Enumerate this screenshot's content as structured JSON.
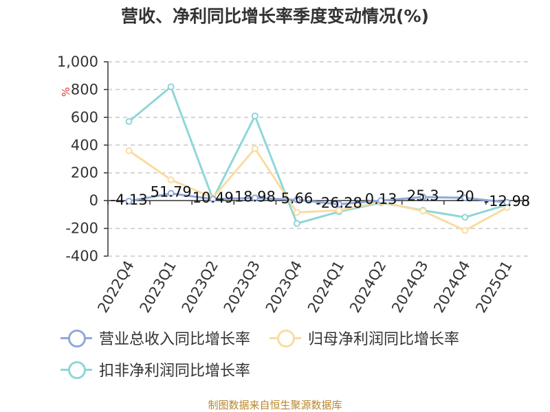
{
  "title": "营收、净利同比增长率季度变动情况(%)",
  "source": "制图数据来自恒生聚源数据库",
  "chart_data": {
    "type": "line",
    "ylabel": "%",
    "ylim": [
      -400,
      1000
    ],
    "yticks": [
      1000,
      800,
      600,
      400,
      200,
      0,
      -200,
      -400
    ],
    "ytick_labels": [
      "1,000",
      "800",
      "600",
      "400",
      "200",
      "0",
      "-200",
      "-400"
    ],
    "grid": true,
    "legend_position": "bottom",
    "categories": [
      "2022Q4",
      "2023Q1",
      "2023Q2",
      "2023Q3",
      "2023Q4",
      "2024Q1",
      "2024Q2",
      "2024Q3",
      "2024Q4",
      "2025Q1"
    ],
    "series": [
      {
        "name": "营业总收入同比增长率",
        "color": "#8fa8d9",
        "values": [
          -4.13,
          51.79,
          10.49,
          18.98,
          5.66,
          -26.28,
          0.13,
          25.3,
          20,
          -12.98
        ],
        "labels": [
          "-4.13",
          "51.79",
          "10.49",
          "18.98",
          "5.66",
          "-26.28",
          "0.13",
          "25.3",
          "20",
          "-12.98"
        ]
      },
      {
        "name": "归母净利润同比增长率",
        "color": "#f9dca1",
        "values": [
          360,
          150,
          20,
          375,
          -85,
          -70,
          -10,
          -75,
          -215,
          -50
        ]
      },
      {
        "name": "扣非净利润同比增长率",
        "color": "#8fd6d8",
        "values": [
          570,
          820,
          10,
          610,
          -165,
          -80,
          -15,
          -70,
          -120,
          -30
        ]
      }
    ]
  }
}
